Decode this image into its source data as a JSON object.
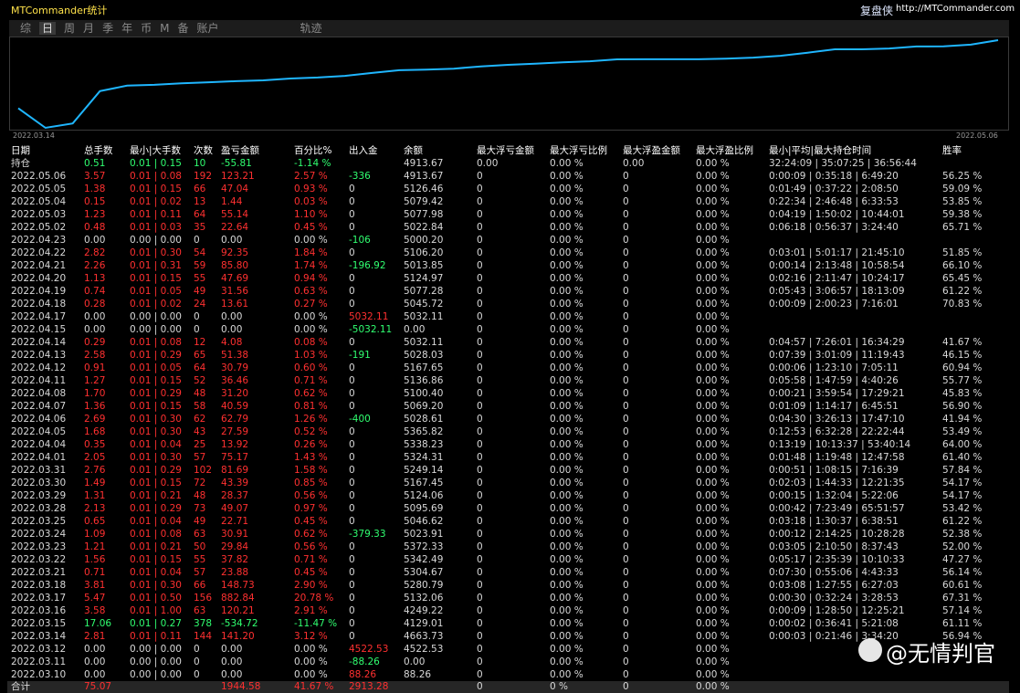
{
  "header": {
    "title": "MTCommander统计",
    "brand": "复盘侠",
    "url": "http://MTCommander.com"
  },
  "tabs": [
    "综",
    "日",
    "周",
    "月",
    "季",
    "年",
    "币",
    "M",
    "备",
    "账户",
    "轨迹"
  ],
  "curve": {
    "start_label": "2022.03.14",
    "end_label": "2022.05.06"
  },
  "table": {
    "columns": [
      "日期",
      "总手数",
      "最小|大手数",
      "次数",
      "盈亏金额",
      "百分比%",
      "出入金",
      "余额",
      "最大浮亏金额",
      "最大浮亏比例",
      "最大浮盈金额",
      "最大浮盈比例",
      "最小|平均|最大持仓时间",
      "胜率"
    ],
    "holding": [
      "持仓",
      "0.51",
      "0.01 | 0.15",
      "10",
      "-55.81",
      "-1.14 %",
      null,
      "4913.67",
      "0.00",
      "0.00 %",
      "0.00",
      "0.00 %",
      "32:24:09 | 35:07:25 | 36:56:44",
      null
    ],
    "rows": [
      [
        "2022.05.06",
        "3.57",
        "0.01 | 0.08",
        "192",
        "123.21",
        "2.57 %",
        "-336",
        "4913.67",
        "0",
        "0.00 %",
        "0",
        "0.00 %",
        "0:00:09 | 0:35:18 | 6:49:20",
        "56.25 %"
      ],
      [
        "2022.05.05",
        "1.38",
        "0.01 | 0.15",
        "66",
        "47.04",
        "0.93 %",
        "0",
        "5126.46",
        "0",
        "0.00 %",
        "0",
        "0.00 %",
        "0:01:49 | 0:37:22 | 2:08:50",
        "59.09 %"
      ],
      [
        "2022.05.04",
        "0.15",
        "0.01 | 0.02",
        "13",
        "1.44",
        "0.03 %",
        "0",
        "5079.42",
        "0",
        "0.00 %",
        "0",
        "0.00 %",
        "0:22:34 | 2:46:48 | 6:33:53",
        "53.85 %"
      ],
      [
        "2022.05.03",
        "1.23",
        "0.01 | 0.11",
        "64",
        "55.14",
        "1.10 %",
        "0",
        "5077.98",
        "0",
        "0.00 %",
        "0",
        "0.00 %",
        "0:04:19 | 1:50:02 | 10:44:01",
        "59.38 %"
      ],
      [
        "2022.05.02",
        "0.48",
        "0.01 | 0.03",
        "35",
        "22.64",
        "0.45 %",
        "0",
        "5022.84",
        "0",
        "0.00 %",
        "0",
        "0.00 %",
        "0:06:18 | 0:56:37 | 3:24:40",
        "65.71 %"
      ],
      [
        "2022.04.23",
        "0.00",
        "0.00 | 0.00",
        "0",
        "0.00",
        "0.00 %",
        "-106",
        "5000.20",
        "0",
        "0.00 %",
        "0",
        "0.00 %",
        null,
        null
      ],
      [
        "2022.04.22",
        "2.82",
        "0.01 | 0.30",
        "54",
        "92.35",
        "1.84 %",
        "0",
        "5106.20",
        "0",
        "0.00 %",
        "0",
        "0.00 %",
        "0:03:01 | 5:01:17 | 21:45:10",
        "51.85 %"
      ],
      [
        "2022.04.21",
        "2.26",
        "0.01 | 0.31",
        "59",
        "85.80",
        "1.74 %",
        "-196.92",
        "5013.85",
        "0",
        "0.00 %",
        "0",
        "0.00 %",
        "0:00:14 | 2:13:48 | 10:58:54",
        "66.10 %"
      ],
      [
        "2022.04.20",
        "1.13",
        "0.01 | 0.15",
        "55",
        "47.69",
        "0.94 %",
        "0",
        "5124.97",
        "0",
        "0.00 %",
        "0",
        "0.00 %",
        "0:02:16 | 2:11:47 | 10:24:17",
        "65.45 %"
      ],
      [
        "2022.04.19",
        "0.74",
        "0.01 | 0.05",
        "49",
        "31.56",
        "0.63 %",
        "0",
        "5077.28",
        "0",
        "0.00 %",
        "0",
        "0.00 %",
        "0:05:43 | 3:06:57 | 18:13:09",
        "61.22 %"
      ],
      [
        "2022.04.18",
        "0.28",
        "0.01 | 0.02",
        "24",
        "13.61",
        "0.27 %",
        "0",
        "5045.72",
        "0",
        "0.00 %",
        "0",
        "0.00 %",
        "0:00:09 | 2:00:23 | 7:16:01",
        "70.83 %"
      ],
      [
        "2022.04.17",
        "0.00",
        "0.00 | 0.00",
        "0",
        "0.00",
        "0.00 %",
        "5032.11",
        "5032.11",
        "0",
        "0.00 %",
        "0",
        "0.00 %",
        null,
        null
      ],
      [
        "2022.04.15",
        "0.00",
        "0.00 | 0.00",
        "0",
        "0.00",
        "0.00 %",
        "-5032.11",
        "0.00",
        "0",
        "0.00 %",
        "0",
        "0.00 %",
        null,
        null
      ],
      [
        "2022.04.14",
        "0.29",
        "0.01 | 0.08",
        "12",
        "4.08",
        "0.08 %",
        "0",
        "5032.11",
        "0",
        "0.00 %",
        "0",
        "0.00 %",
        "0:04:57 | 7:26:01 | 16:34:29",
        "41.67 %"
      ],
      [
        "2022.04.13",
        "2.58",
        "0.01 | 0.29",
        "65",
        "51.38",
        "1.03 %",
        "-191",
        "5028.03",
        "0",
        "0.00 %",
        "0",
        "0.00 %",
        "0:07:39 | 3:01:09 | 11:19:43",
        "46.15 %"
      ],
      [
        "2022.04.12",
        "0.91",
        "0.01 | 0.05",
        "64",
        "30.79",
        "0.60 %",
        "0",
        "5167.65",
        "0",
        "0.00 %",
        "0",
        "0.00 %",
        "0:00:06 | 1:23:10 | 7:05:11",
        "60.94 %"
      ],
      [
        "2022.04.11",
        "1.27",
        "0.01 | 0.15",
        "52",
        "36.46",
        "0.71 %",
        "0",
        "5136.86",
        "0",
        "0.00 %",
        "0",
        "0.00 %",
        "0:05:58 | 1:47:59 | 4:40:26",
        "55.77 %"
      ],
      [
        "2022.04.08",
        "1.70",
        "0.01 | 0.29",
        "48",
        "31.20",
        "0.62 %",
        "0",
        "5100.40",
        "0",
        "0.00 %",
        "0",
        "0.00 %",
        "0:00:21 | 3:59:54 | 17:29:21",
        "45.83 %"
      ],
      [
        "2022.04.07",
        "1.36",
        "0.01 | 0.15",
        "58",
        "40.59",
        "0.81 %",
        "0",
        "5069.20",
        "0",
        "0.00 %",
        "0",
        "0.00 %",
        "0:01:09 | 1:14:17 | 6:45:51",
        "56.90 %"
      ],
      [
        "2022.04.06",
        "2.69",
        "0.01 | 0.30",
        "62",
        "62.79",
        "1.26 %",
        "-400",
        "5028.61",
        "0",
        "0.00 %",
        "0",
        "0.00 %",
        "0:04:30 | 3:26:13 | 17:47:10",
        "41.94 %"
      ],
      [
        "2022.04.05",
        "1.68",
        "0.01 | 0.30",
        "43",
        "27.59",
        "0.52 %",
        "0",
        "5365.82",
        "0",
        "0.00 %",
        "0",
        "0.00 %",
        "0:12:53 | 6:32:28 | 22:22:44",
        "53.49 %"
      ],
      [
        "2022.04.04",
        "0.35",
        "0.01 | 0.04",
        "25",
        "13.92",
        "0.26 %",
        "0",
        "5338.23",
        "0",
        "0.00 %",
        "0",
        "0.00 %",
        "0:13:19 | 10:13:37 | 53:40:14",
        "64.00 %"
      ],
      [
        "2022.04.01",
        "2.05",
        "0.01 | 0.30",
        "57",
        "75.17",
        "1.43 %",
        "0",
        "5324.31",
        "0",
        "0.00 %",
        "0",
        "0.00 %",
        "0:01:48 | 1:19:48 | 12:47:58",
        "61.40 %"
      ],
      [
        "2022.03.31",
        "2.76",
        "0.01 | 0.29",
        "102",
        "81.69",
        "1.58 %",
        "0",
        "5249.14",
        "0",
        "0.00 %",
        "0",
        "0.00 %",
        "0:00:51 | 1:08:15 | 7:16:39",
        "57.84 %"
      ],
      [
        "2022.03.30",
        "1.49",
        "0.01 | 0.15",
        "72",
        "43.39",
        "0.85 %",
        "0",
        "5167.45",
        "0",
        "0.00 %",
        "0",
        "0.00 %",
        "0:02:03 | 1:44:33 | 12:21:35",
        "54.17 %"
      ],
      [
        "2022.03.29",
        "1.31",
        "0.01 | 0.21",
        "48",
        "28.37",
        "0.56 %",
        "0",
        "5124.06",
        "0",
        "0.00 %",
        "0",
        "0.00 %",
        "0:00:15 | 1:32:04 | 5:22:06",
        "54.17 %"
      ],
      [
        "2022.03.28",
        "2.13",
        "0.01 | 0.29",
        "73",
        "49.07",
        "0.97 %",
        "0",
        "5095.69",
        "0",
        "0.00 %",
        "0",
        "0.00 %",
        "0:00:42 | 7:23:49 | 65:51:57",
        "53.42 %"
      ],
      [
        "2022.03.25",
        "0.65",
        "0.01 | 0.04",
        "49",
        "22.71",
        "0.45 %",
        "0",
        "5046.62",
        "0",
        "0.00 %",
        "0",
        "0.00 %",
        "0:03:18 | 1:30:37 | 6:38:51",
        "61.22 %"
      ],
      [
        "2022.03.24",
        "1.09",
        "0.01 | 0.08",
        "63",
        "30.91",
        "0.62 %",
        "-379.33",
        "5023.91",
        "0",
        "0.00 %",
        "0",
        "0.00 %",
        "0:00:12 | 2:14:25 | 10:28:28",
        "52.38 %"
      ],
      [
        "2022.03.23",
        "1.21",
        "0.01 | 0.21",
        "50",
        "29.84",
        "0.56 %",
        "0",
        "5372.33",
        "0",
        "0.00 %",
        "0",
        "0.00 %",
        "0:03:05 | 2:10:50 | 8:37:43",
        "52.00 %"
      ],
      [
        "2022.03.22",
        "1.56",
        "0.01 | 0.15",
        "55",
        "37.82",
        "0.71 %",
        "0",
        "5342.49",
        "0",
        "0.00 %",
        "0",
        "0.00 %",
        "0:05:17 | 2:35:39 | 10:10:33",
        "47.27 %"
      ],
      [
        "2022.03.21",
        "0.71",
        "0.01 | 0.04",
        "57",
        "23.88",
        "0.45 %",
        "0",
        "5304.67",
        "0",
        "0.00 %",
        "0",
        "0.00 %",
        "0:07:30 | 0:55:06 | 4:43:33",
        "56.14 %"
      ],
      [
        "2022.03.18",
        "3.81",
        "0.01 | 0.30",
        "66",
        "148.73",
        "2.90 %",
        "0",
        "5280.79",
        "0",
        "0.00 %",
        "0",
        "0.00 %",
        "0:03:08 | 1:27:55 | 6:27:03",
        "60.61 %"
      ],
      [
        "2022.03.17",
        "5.47",
        "0.01 | 0.50",
        "156",
        "882.84",
        "20.78 %",
        "0",
        "5132.06",
        "0",
        "0.00 %",
        "0",
        "0.00 %",
        "0:00:30 | 0:32:24 | 3:28:53",
        "67.31 %"
      ],
      [
        "2022.03.16",
        "3.58",
        "0.01 | 1.00",
        "63",
        "120.21",
        "2.91 %",
        "0",
        "4249.22",
        "0",
        "0.00 %",
        "0",
        "0.00 %",
        "0:00:09 | 1:28:50 | 12:25:21",
        "57.14 %"
      ],
      [
        "2022.03.15",
        "17.06",
        "0.01 | 0.27",
        "378",
        "-534.72",
        "-11.47 %",
        "0",
        "4129.01",
        "0",
        "0.00 %",
        "0",
        "0.00 %",
        "0:00:02 | 0:36:41 | 5:21:08",
        "61.11 %"
      ],
      [
        "2022.03.14",
        "2.81",
        "0.01 | 0.11",
        "144",
        "141.20",
        "3.12 %",
        "0",
        "4663.73",
        "0",
        "0.00 %",
        "0",
        "0.00 %",
        "0:00:03 | 0:21:46 | 3:34:20",
        "56.94 %"
      ],
      [
        "2022.03.12",
        "0.00",
        "0.00 | 0.00",
        "0",
        "0.00",
        "0.00 %",
        "4522.53",
        "4522.53",
        "0",
        "0.00 %",
        "0",
        "0.00 %",
        null,
        null
      ],
      [
        "2022.03.11",
        "0.00",
        "0.00 | 0.00",
        "0",
        "0.00",
        "0.00 %",
        "-88.26",
        "0.00",
        "0",
        "0.00 %",
        "0",
        "0.00 %",
        null,
        null
      ],
      [
        "2022.03.10",
        "0.00",
        "0.00 | 0.00",
        "0",
        "0.00",
        "0.00 %",
        "88.26",
        "88.26",
        "0",
        "0.00 %",
        "0",
        "0.00 %",
        null,
        null
      ]
    ],
    "total": [
      "合计",
      "75.07",
      null,
      null,
      "1944.58",
      "41.67 %",
      "2913.28",
      null,
      "0",
      "0 %",
      "0",
      "0.00 %",
      null,
      null
    ]
  },
  "watermark": "@无情判官"
}
